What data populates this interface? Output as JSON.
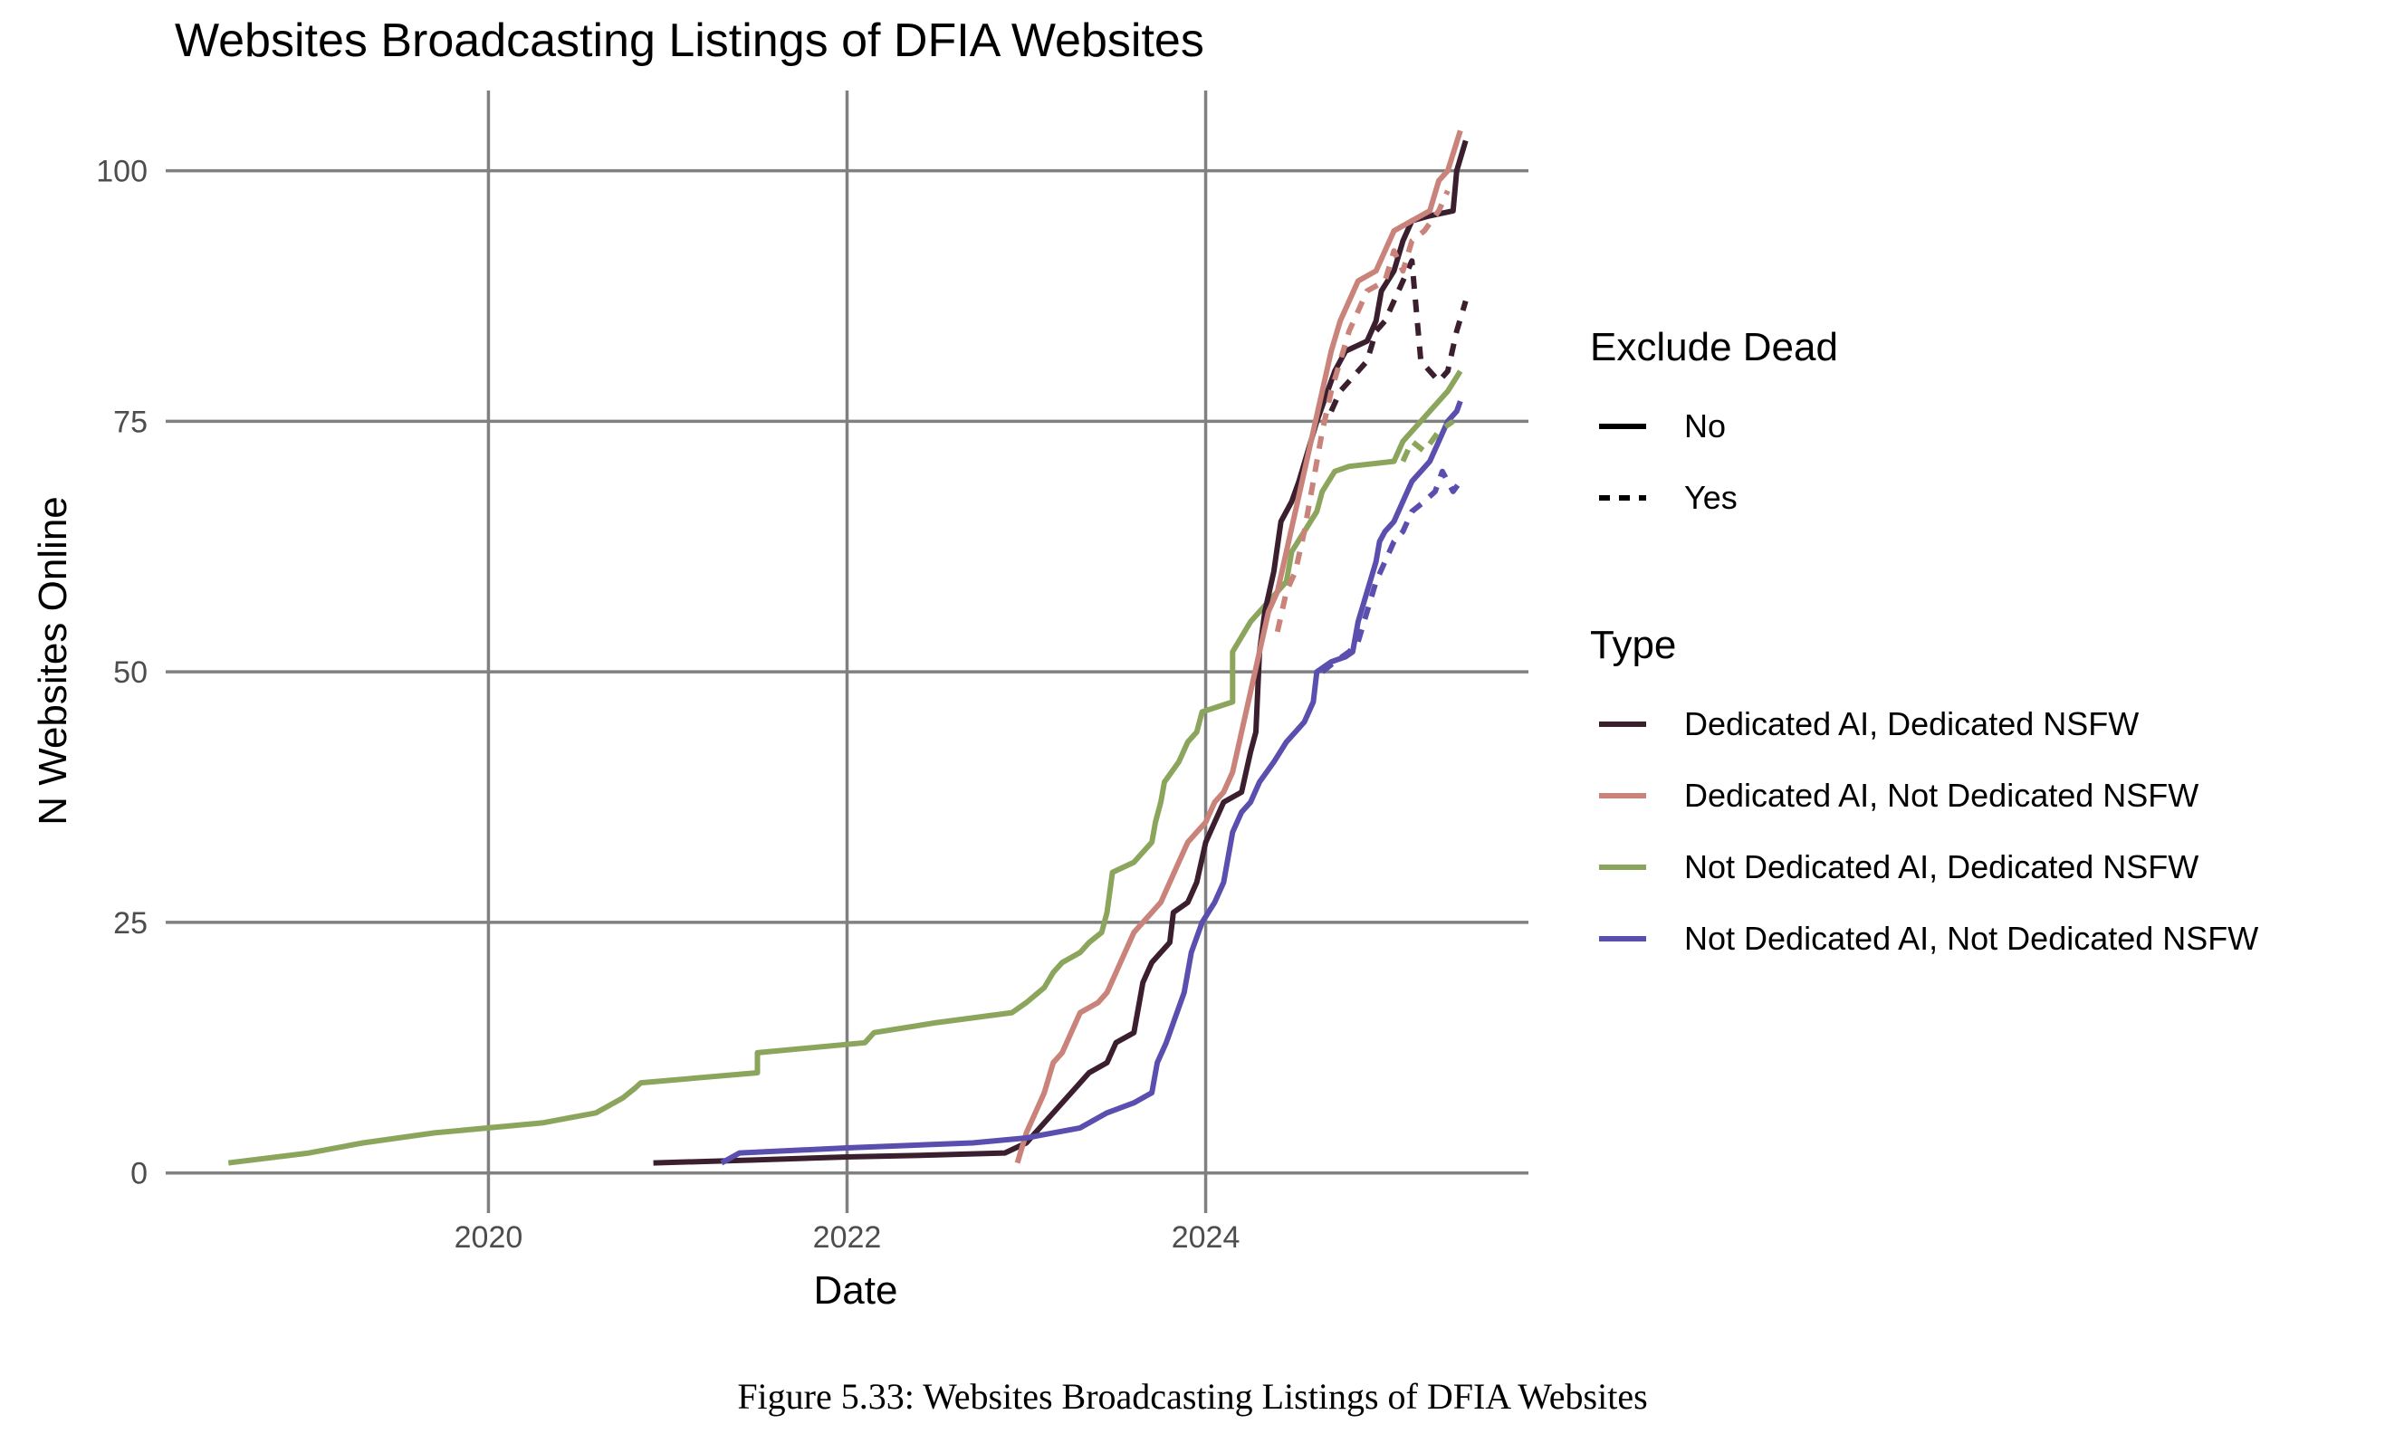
{
  "chart_data": {
    "type": "line",
    "title": "Websites Broadcasting Listings of DFIA Websites",
    "xlabel": "Date",
    "ylabel": "N Websites Online",
    "xlim": [
      2018.2,
      2025.8
    ],
    "ylim": [
      -4,
      108
    ],
    "x_ticks": [
      2020,
      2022,
      2024
    ],
    "y_ticks": [
      0,
      25,
      50,
      75,
      100
    ],
    "grid": true,
    "legend_placement": "right",
    "legends": [
      {
        "title": "Exclude Dead",
        "entries": [
          {
            "label": "No",
            "dash": "solid"
          },
          {
            "label": "Yes",
            "dash": "dashed"
          }
        ]
      },
      {
        "title": "Type",
        "entries": [
          {
            "label": "Dedicated AI, Dedicated NSFW",
            "color": "#3b1f2f"
          },
          {
            "label": "Dedicated AI, Not Dedicated NSFW",
            "color": "#c9837a"
          },
          {
            "label": "Not Dedicated AI, Dedicated NSFW",
            "color": "#8ba65c"
          },
          {
            "label": "Not Dedicated AI, Not Dedicated NSFW",
            "color": "#5a4eae"
          }
        ]
      }
    ],
    "series": [
      {
        "type": "Not Dedicated AI, Dedicated NSFW",
        "exclude_dead": "No",
        "color": "#8ba65c",
        "points": [
          [
            2018.55,
            1
          ],
          [
            2019.0,
            2
          ],
          [
            2019.3,
            3
          ],
          [
            2019.7,
            4
          ],
          [
            2020.3,
            5
          ],
          [
            2020.6,
            6
          ],
          [
            2020.75,
            7.5
          ],
          [
            2020.82,
            8.5
          ],
          [
            2020.85,
            9
          ],
          [
            2021.5,
            10
          ],
          [
            2021.5,
            12
          ],
          [
            2022.1,
            13
          ],
          [
            2022.15,
            14
          ],
          [
            2022.5,
            15
          ],
          [
            2022.92,
            16
          ],
          [
            2023.0,
            17
          ],
          [
            2023.1,
            18.5
          ],
          [
            2023.15,
            20
          ],
          [
            2023.2,
            21
          ],
          [
            2023.3,
            22
          ],
          [
            2023.35,
            23
          ],
          [
            2023.42,
            24
          ],
          [
            2023.45,
            26
          ],
          [
            2023.48,
            30
          ],
          [
            2023.6,
            31
          ],
          [
            2023.65,
            32
          ],
          [
            2023.7,
            33
          ],
          [
            2023.72,
            35
          ],
          [
            2023.75,
            37
          ],
          [
            2023.77,
            39
          ],
          [
            2023.85,
            41
          ],
          [
            2023.9,
            43
          ],
          [
            2023.95,
            44
          ],
          [
            2023.98,
            46
          ],
          [
            2024.15,
            47
          ],
          [
            2024.15,
            52
          ],
          [
            2024.25,
            55
          ],
          [
            2024.35,
            57
          ],
          [
            2024.45,
            59
          ],
          [
            2024.48,
            62
          ],
          [
            2024.55,
            64
          ],
          [
            2024.62,
            66
          ],
          [
            2024.65,
            68
          ],
          [
            2024.72,
            70
          ],
          [
            2024.8,
            70.5
          ],
          [
            2025.05,
            71
          ],
          [
            2025.1,
            73
          ],
          [
            2025.2,
            75
          ],
          [
            2025.25,
            76
          ],
          [
            2025.35,
            78
          ],
          [
            2025.42,
            80
          ]
        ]
      },
      {
        "type": "Not Dedicated AI, Dedicated NSFW",
        "exclude_dead": "Yes",
        "color": "#8ba65c",
        "points": [
          [
            2025.1,
            71
          ],
          [
            2025.15,
            73
          ],
          [
            2025.22,
            72
          ],
          [
            2025.3,
            74
          ],
          [
            2025.38,
            75
          ]
        ]
      },
      {
        "type": "Dedicated AI, Dedicated NSFW",
        "exclude_dead": "No",
        "color": "#3b1f2f",
        "points": [
          [
            2020.92,
            1
          ],
          [
            2021.5,
            1.3
          ],
          [
            2022.0,
            1.6
          ],
          [
            2022.5,
            1.8
          ],
          [
            2022.88,
            2
          ],
          [
            2023.0,
            3
          ],
          [
            2023.05,
            4
          ],
          [
            2023.1,
            5
          ],
          [
            2023.2,
            7
          ],
          [
            2023.3,
            9
          ],
          [
            2023.35,
            10
          ],
          [
            2023.45,
            11
          ],
          [
            2023.5,
            13
          ],
          [
            2023.6,
            14
          ],
          [
            2023.65,
            19
          ],
          [
            2023.7,
            21
          ],
          [
            2023.75,
            22
          ],
          [
            2023.8,
            23
          ],
          [
            2023.82,
            26
          ],
          [
            2023.9,
            27
          ],
          [
            2023.95,
            29
          ],
          [
            2024.0,
            33
          ],
          [
            2024.05,
            35
          ],
          [
            2024.1,
            37
          ],
          [
            2024.2,
            38
          ],
          [
            2024.25,
            42
          ],
          [
            2024.28,
            44
          ],
          [
            2024.3,
            52
          ],
          [
            2024.33,
            56
          ],
          [
            2024.38,
            60
          ],
          [
            2024.42,
            65
          ],
          [
            2024.48,
            67
          ],
          [
            2024.52,
            69
          ],
          [
            2024.57,
            72
          ],
          [
            2024.62,
            75
          ],
          [
            2024.68,
            78
          ],
          [
            2024.72,
            80
          ],
          [
            2024.78,
            82
          ],
          [
            2024.9,
            83
          ],
          [
            2024.95,
            85
          ],
          [
            2024.98,
            88
          ],
          [
            2025.05,
            90
          ],
          [
            2025.1,
            93
          ],
          [
            2025.15,
            95
          ],
          [
            2025.25,
            95.5
          ],
          [
            2025.38,
            96
          ],
          [
            2025.4,
            100
          ],
          [
            2025.45,
            103
          ]
        ]
      },
      {
        "type": "Dedicated AI, Dedicated NSFW",
        "exclude_dead": "Yes",
        "color": "#3b1f2f",
        "points": [
          [
            2024.7,
            76
          ],
          [
            2024.75,
            78
          ],
          [
            2024.8,
            79
          ],
          [
            2024.85,
            80
          ],
          [
            2024.9,
            81
          ],
          [
            2024.95,
            84
          ],
          [
            2025.0,
            85
          ],
          [
            2025.05,
            87
          ],
          [
            2025.1,
            89
          ],
          [
            2025.15,
            91
          ],
          [
            2025.2,
            81
          ],
          [
            2025.25,
            80
          ],
          [
            2025.3,
            79
          ],
          [
            2025.35,
            80
          ],
          [
            2025.4,
            84
          ],
          [
            2025.45,
            87
          ]
        ]
      },
      {
        "type": "Dedicated AI, Not Dedicated NSFW",
        "exclude_dead": "No",
        "color": "#c9837a",
        "points": [
          [
            2022.95,
            1
          ],
          [
            2023.0,
            4
          ],
          [
            2023.05,
            6
          ],
          [
            2023.1,
            8
          ],
          [
            2023.15,
            11
          ],
          [
            2023.2,
            12
          ],
          [
            2023.25,
            14
          ],
          [
            2023.3,
            16
          ],
          [
            2023.4,
            17
          ],
          [
            2023.45,
            18
          ],
          [
            2023.5,
            20
          ],
          [
            2023.55,
            22
          ],
          [
            2023.6,
            24
          ],
          [
            2023.65,
            25
          ],
          [
            2023.7,
            26
          ],
          [
            2023.75,
            27
          ],
          [
            2023.8,
            29
          ],
          [
            2023.85,
            31
          ],
          [
            2023.9,
            33
          ],
          [
            2023.95,
            34
          ],
          [
            2024.0,
            35
          ],
          [
            2024.05,
            37
          ],
          [
            2024.1,
            38
          ],
          [
            2024.15,
            40
          ],
          [
            2024.2,
            44
          ],
          [
            2024.25,
            48
          ],
          [
            2024.3,
            52
          ],
          [
            2024.35,
            56
          ],
          [
            2024.4,
            58
          ],
          [
            2024.45,
            62
          ],
          [
            2024.5,
            66
          ],
          [
            2024.55,
            70
          ],
          [
            2024.6,
            74
          ],
          [
            2024.65,
            78
          ],
          [
            2024.7,
            82
          ],
          [
            2024.75,
            85
          ],
          [
            2024.8,
            87
          ],
          [
            2024.85,
            89
          ],
          [
            2024.95,
            90
          ],
          [
            2025.0,
            92
          ],
          [
            2025.05,
            94
          ],
          [
            2025.15,
            95
          ],
          [
            2025.25,
            96
          ],
          [
            2025.3,
            99
          ],
          [
            2025.35,
            100
          ],
          [
            2025.42,
            104
          ]
        ]
      },
      {
        "type": "Dedicated AI, Not Dedicated NSFW",
        "exclude_dead": "Yes",
        "color": "#c9837a",
        "points": [
          [
            2024.4,
            54
          ],
          [
            2024.45,
            58
          ],
          [
            2024.5,
            60
          ],
          [
            2024.55,
            64
          ],
          [
            2024.6,
            69
          ],
          [
            2024.65,
            74
          ],
          [
            2024.7,
            78
          ],
          [
            2024.8,
            84
          ],
          [
            2024.85,
            86
          ],
          [
            2024.9,
            88
          ],
          [
            2025.0,
            89
          ],
          [
            2025.05,
            92
          ],
          [
            2025.1,
            90
          ],
          [
            2025.15,
            93
          ],
          [
            2025.22,
            94
          ],
          [
            2025.3,
            96
          ],
          [
            2025.35,
            98
          ]
        ]
      },
      {
        "type": "Not Dedicated AI, Not Dedicated NSFW",
        "exclude_dead": "No",
        "color": "#5a4eae",
        "points": [
          [
            2021.3,
            1
          ],
          [
            2021.4,
            2
          ],
          [
            2022.0,
            2.5
          ],
          [
            2022.7,
            3
          ],
          [
            2023.0,
            3.5
          ],
          [
            2023.3,
            4.5
          ],
          [
            2023.45,
            6
          ],
          [
            2023.6,
            7
          ],
          [
            2023.7,
            8
          ],
          [
            2023.73,
            11
          ],
          [
            2023.78,
            13
          ],
          [
            2023.82,
            15
          ],
          [
            2023.88,
            18
          ],
          [
            2023.92,
            22
          ],
          [
            2023.98,
            25
          ],
          [
            2024.05,
            27
          ],
          [
            2024.1,
            29
          ],
          [
            2024.15,
            34
          ],
          [
            2024.2,
            36
          ],
          [
            2024.25,
            37
          ],
          [
            2024.3,
            39
          ],
          [
            2024.38,
            41
          ],
          [
            2024.45,
            43
          ],
          [
            2024.5,
            44
          ],
          [
            2024.55,
            45
          ],
          [
            2024.6,
            47
          ],
          [
            2024.62,
            50
          ],
          [
            2024.7,
            51
          ],
          [
            2024.78,
            51.5
          ],
          [
            2024.82,
            52
          ],
          [
            2024.85,
            55
          ],
          [
            2024.9,
            58
          ],
          [
            2024.95,
            61
          ],
          [
            2024.97,
            63
          ],
          [
            2025.0,
            64
          ],
          [
            2025.05,
            65
          ],
          [
            2025.1,
            67
          ],
          [
            2025.15,
            69
          ],
          [
            2025.2,
            70
          ],
          [
            2025.25,
            71
          ],
          [
            2025.3,
            73
          ],
          [
            2025.35,
            75
          ],
          [
            2025.4,
            76
          ],
          [
            2025.42,
            77
          ]
        ]
      },
      {
        "type": "Not Dedicated AI, Not Dedicated NSFW",
        "exclude_dead": "Yes",
        "color": "#5a4eae",
        "points": [
          [
            2024.65,
            50
          ],
          [
            2024.72,
            51
          ],
          [
            2024.8,
            52
          ],
          [
            2024.85,
            53
          ],
          [
            2024.9,
            56
          ],
          [
            2024.95,
            59
          ],
          [
            2025.0,
            61
          ],
          [
            2025.05,
            63
          ],
          [
            2025.1,
            64
          ],
          [
            2025.15,
            66
          ],
          [
            2025.22,
            67
          ],
          [
            2025.28,
            68
          ],
          [
            2025.32,
            70
          ],
          [
            2025.38,
            68
          ],
          [
            2025.42,
            69
          ]
        ]
      }
    ]
  },
  "caption": "Figure 5.33: Websites Broadcasting Listings of DFIA Websites"
}
